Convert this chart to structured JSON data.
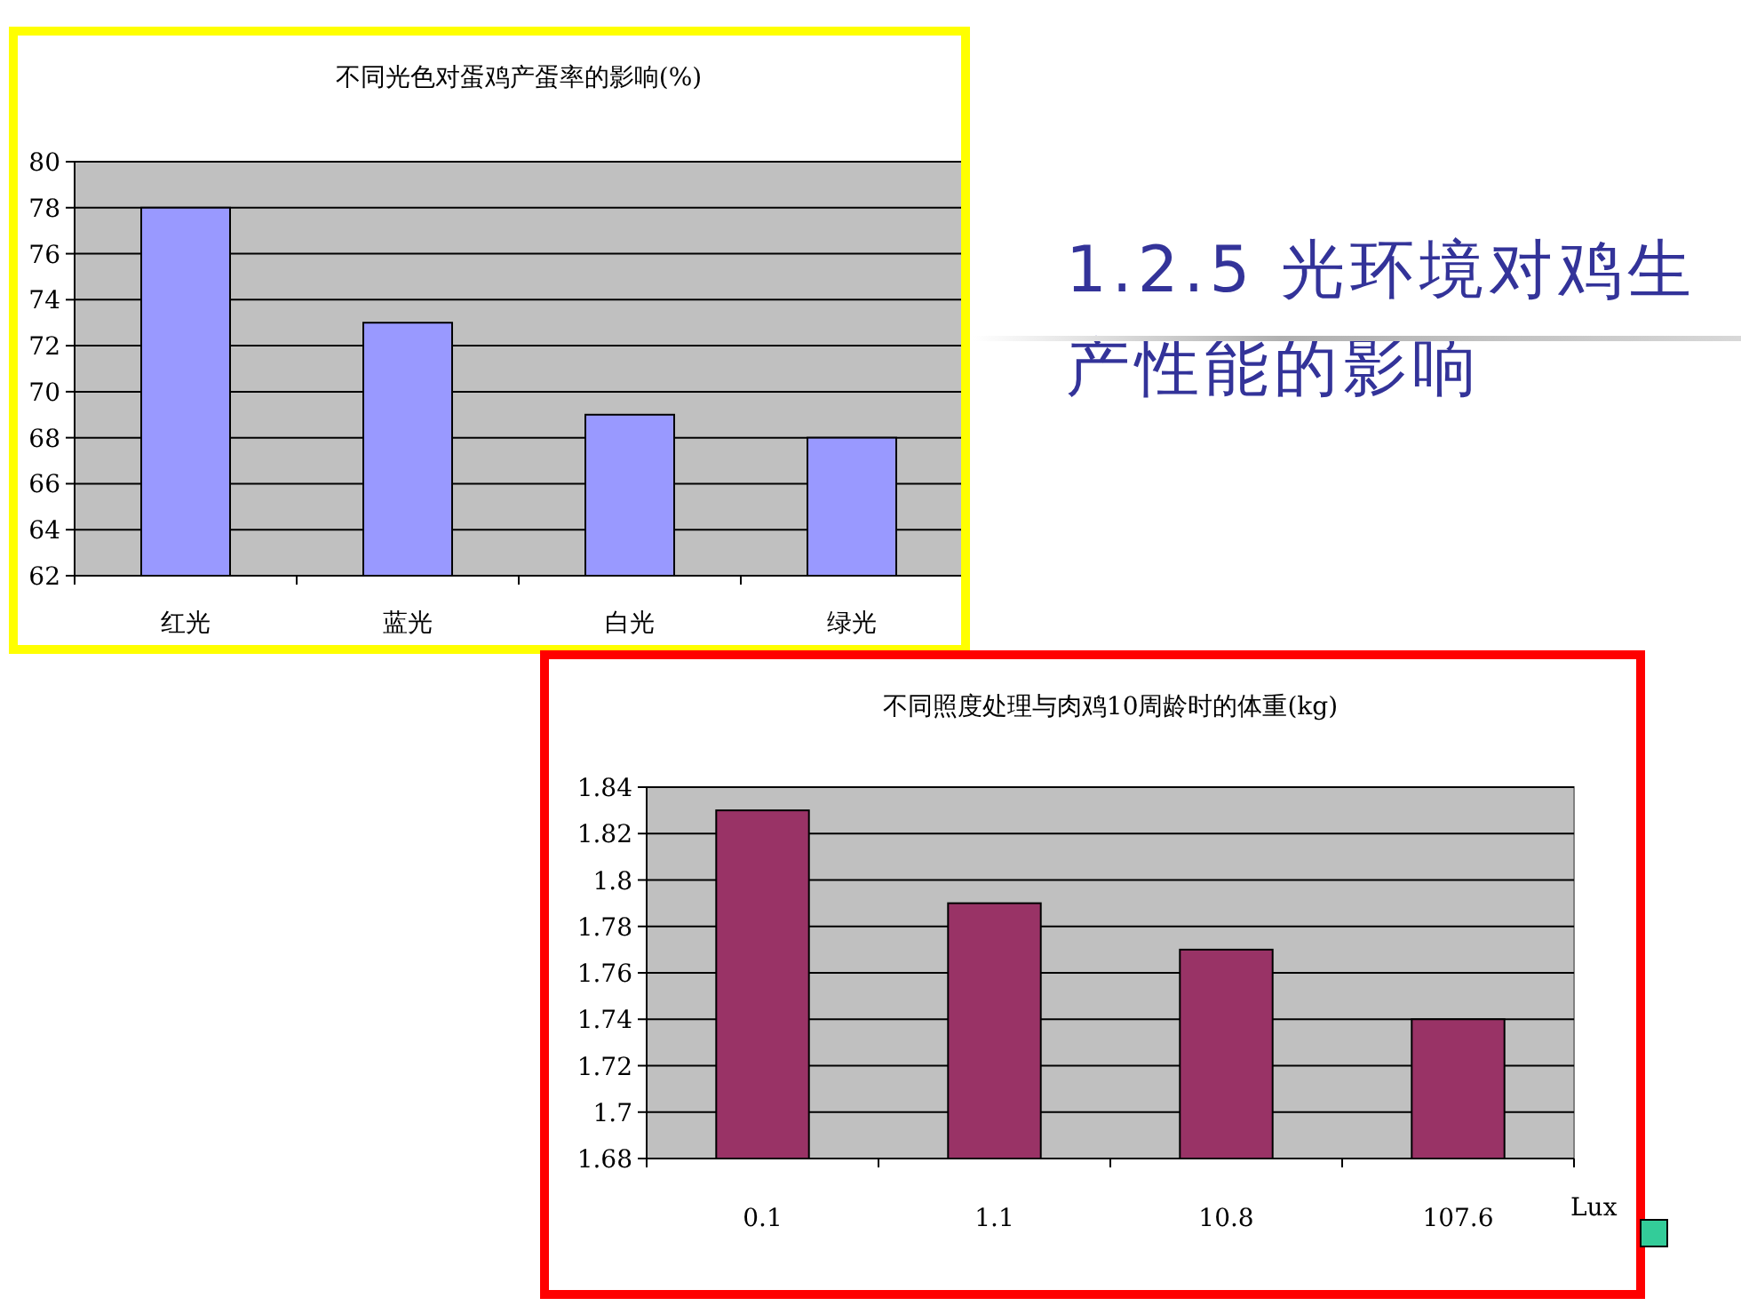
{
  "chart_data": [
    {
      "type": "bar",
      "title": "不同光色对蛋鸡产蛋率的影响(%)",
      "categories": [
        "红光",
        "蓝光",
        "白光",
        "绿光"
      ],
      "values": [
        78,
        73,
        69,
        68
      ],
      "color": "#9999ff",
      "ylim": [
        62,
        80
      ],
      "yticks": [
        62,
        64,
        66,
        68,
        70,
        72,
        74,
        76,
        78,
        80
      ],
      "grid": "y"
    },
    {
      "type": "bar",
      "title": "不同照度处理与肉鸡10周龄时的体重(kg)",
      "xlabel": "Lux",
      "categories": [
        "0.1",
        "1.1",
        "10.8",
        "107.6"
      ],
      "values": [
        1.83,
        1.79,
        1.77,
        1.74
      ],
      "color": "#993366",
      "ylim": [
        1.68,
        1.84
      ],
      "yticks": [
        1.68,
        1.7,
        1.72,
        1.74,
        1.76,
        1.78,
        1.8,
        1.82,
        1.84
      ],
      "grid": "y"
    },
    {
      "type": "other",
      "title": "1.2.5 光环境对鸡生产性能的影响"
    }
  ]
}
